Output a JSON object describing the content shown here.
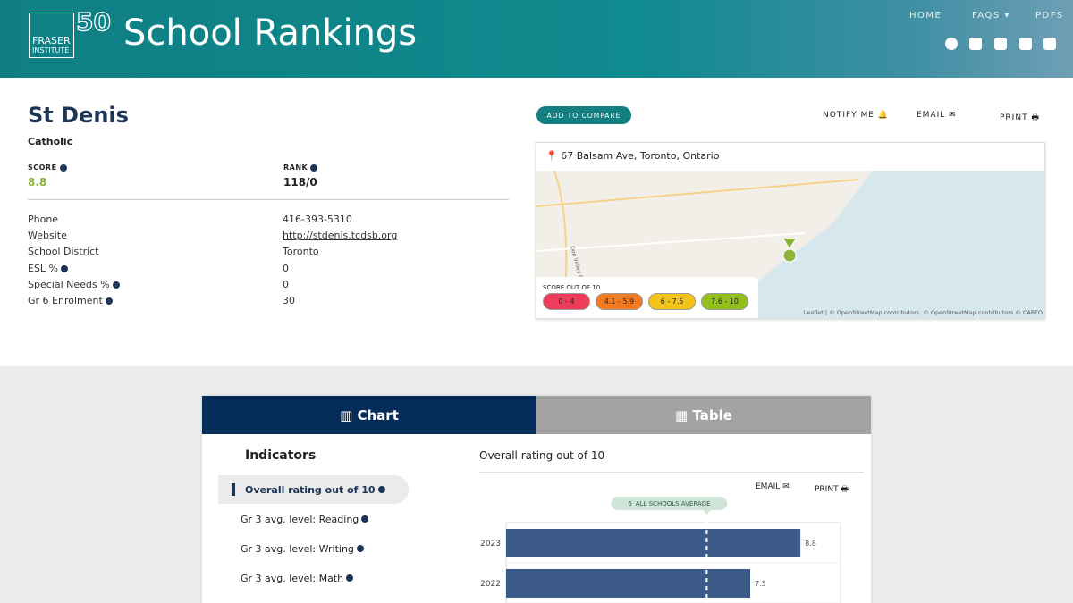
{
  "header": {
    "logo_line1": "FRASER",
    "logo_line2": "INSTITUTE",
    "anniversary": "50",
    "title": "School Rankings",
    "nav": [
      "HOME",
      "FAQS",
      "PDFS"
    ]
  },
  "school": {
    "name": "St Denis",
    "type": "Catholic",
    "score_label": "SCORE",
    "score": "8.8",
    "rank_label": "RANK",
    "rank": "118/0",
    "details": [
      [
        "Phone",
        "416-393-5310"
      ],
      [
        "Website",
        "http://stdenis.tcdsb.org"
      ],
      [
        "School District",
        "Toronto"
      ],
      [
        "ESL %",
        "0"
      ],
      [
        "Special Needs %",
        "0"
      ],
      [
        "Gr 6 Enrolment",
        "30"
      ]
    ]
  },
  "actions": {
    "compare": "ADD TO COMPARE",
    "notify": "NOTIFY ME",
    "email": "EMAIL",
    "print": "PRINT"
  },
  "map": {
    "address": "67 Balsam Ave, Toronto, Ontario",
    "road": "Don Valley Pkwy",
    "legend_title": "SCORE OUT OF 10",
    "legend": [
      {
        "label": "0 - 4",
        "color": "#ee3d5b"
      },
      {
        "label": "4.1 - 5.9",
        "color": "#f47b20"
      },
      {
        "label": "6 - 7.5",
        "color": "#f2c318"
      },
      {
        "label": "7.6 - 10",
        "color": "#93c01f"
      }
    ],
    "attribution": "Leaflet | © OpenStreetMap contributors, © OpenStreetMap contributors © CARTO"
  },
  "tabs": [
    "Chart",
    "Table"
  ],
  "indicators": {
    "title": "Indicators",
    "items": [
      "Overall rating out of 10",
      "Gr 3 avg. level: Reading",
      "Gr 3 avg. level: Writing",
      "Gr 3 avg. level: Math"
    ]
  },
  "chart_data": {
    "type": "bar",
    "orientation": "horizontal",
    "title": "Overall rating out of 10",
    "categories": [
      "2023",
      "2022"
    ],
    "values": [
      8.8,
      7.3
    ],
    "color": "#3c5a88",
    "xlim": [
      0,
      10
    ],
    "average": 6,
    "average_label": "ALL SCHOOLS AVERAGE",
    "email": "EMAIL",
    "print": "PRINT"
  }
}
